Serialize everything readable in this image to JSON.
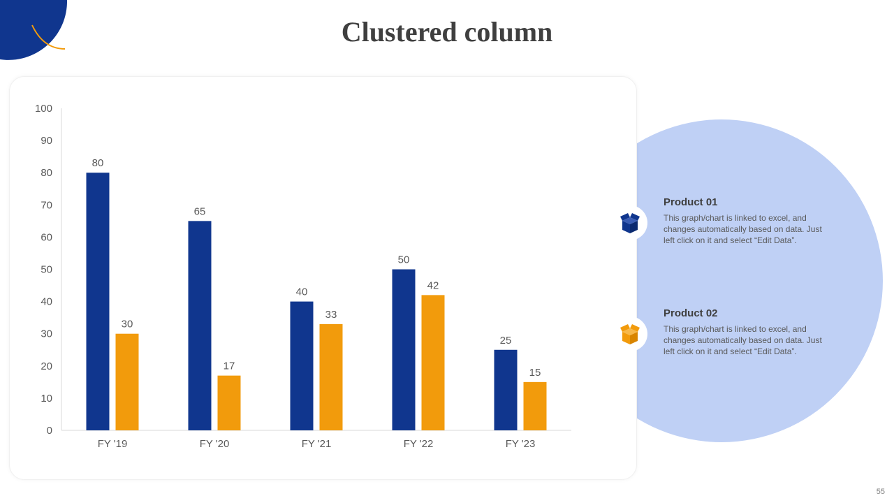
{
  "slide": {
    "title": "Clustered column",
    "page_number": "55"
  },
  "colors": {
    "product01": "#10368e",
    "product02": "#f29b0c",
    "circle": "#bfd0f5",
    "corner": "#10368e",
    "accent": "#f29b0c"
  },
  "legend": [
    {
      "title": "Product 01",
      "description": "This graph/chart is linked to excel, and changes automatically based on data. Just left click on it and select “Edit Data”.",
      "icon": "open-box-icon"
    },
    {
      "title": "Product 02",
      "description": "This graph/chart is linked to excel, and changes automatically based on data. Just left click on it and select “Edit Data”.",
      "icon": "open-box-icon"
    }
  ],
  "chart_data": {
    "type": "bar",
    "title": "",
    "xlabel": "",
    "ylabel": "",
    "categories": [
      "FY '19",
      "FY '20",
      "FY '21",
      "FY '22",
      "FY '23"
    ],
    "series": [
      {
        "name": "Product 01",
        "values": [
          80,
          65,
          40,
          50,
          25
        ]
      },
      {
        "name": "Product 02",
        "values": [
          30,
          17,
          33,
          42,
          15
        ]
      }
    ],
    "ylim": [
      0,
      100
    ],
    "yticks": [
      "0",
      "10",
      "20",
      "30",
      "40",
      "50",
      "60",
      "70",
      "80",
      "90",
      "100"
    ],
    "grid": false,
    "data_labels": true
  }
}
